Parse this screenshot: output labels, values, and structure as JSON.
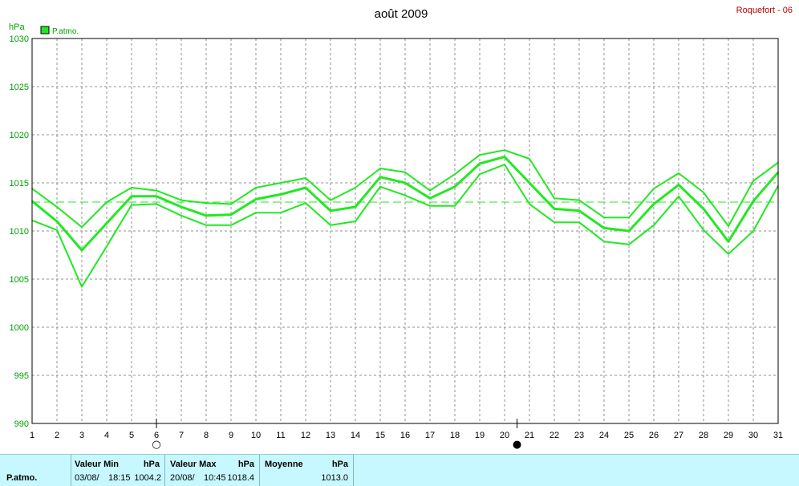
{
  "header": {
    "station": "Roquefort - 06"
  },
  "chart_data": {
    "type": "line",
    "title": "août 2009",
    "ylabel": "hPa",
    "ylim": [
      990,
      1030
    ],
    "yticks": [
      "990",
      "995",
      "1000",
      "1005",
      "1010",
      "1015",
      "1020",
      "1025",
      "1030"
    ],
    "categories": [
      "1",
      "2",
      "3",
      "4",
      "5",
      "6",
      "7",
      "8",
      "9",
      "10",
      "11",
      "12",
      "13",
      "14",
      "15",
      "16",
      "17",
      "18",
      "19",
      "20",
      "21",
      "22",
      "23",
      "24",
      "25",
      "26",
      "27",
      "28",
      "29",
      "30",
      "31"
    ],
    "legend": "P.atmo.",
    "line_color": "#22e822",
    "grid": true,
    "average_line": 1013.0,
    "series": [
      {
        "values": [
          1014.4,
          1012.5,
          1010.4,
          1013.0,
          1014.5,
          1014.2,
          1013.2,
          1012.9,
          1012.8,
          1014.5,
          1015.0,
          1015.5,
          1013.2,
          1014.5,
          1016.5,
          1016.1,
          1014.2,
          1015.9,
          1017.9,
          1018.4,
          1017.5,
          1013.4,
          1013.2,
          1011.4,
          1011.4,
          1014.4,
          1016.0,
          1014.0,
          1010.5,
          1015.2,
          1017.1
        ]
      },
      {
        "values": [
          1013.1,
          1011.0,
          1008.0,
          1010.8,
          1013.6,
          1013.6,
          1012.5,
          1011.6,
          1011.7,
          1013.3,
          1013.8,
          1014.5,
          1012.1,
          1012.5,
          1015.6,
          1015.0,
          1013.4,
          1014.6,
          1017.0,
          1017.7,
          1015.0,
          1012.3,
          1012.1,
          1010.3,
          1010.0,
          1012.8,
          1014.8,
          1012.3,
          1008.9,
          1013.1,
          1016.1
        ]
      },
      {
        "values": [
          1011.1,
          1010.1,
          1004.2,
          1008.4,
          1012.7,
          1012.8,
          1011.6,
          1010.6,
          1010.6,
          1011.9,
          1011.9,
          1012.9,
          1010.6,
          1011.0,
          1014.6,
          1013.7,
          1012.6,
          1012.6,
          1015.9,
          1016.9,
          1012.8,
          1010.9,
          1010.9,
          1008.9,
          1008.6,
          1010.6,
          1013.6,
          1010.1,
          1007.6,
          1010.0,
          1014.7
        ]
      }
    ],
    "moon_phases": [
      {
        "day": 6,
        "symbol": "○"
      },
      {
        "day": 20.5,
        "symbol": "●"
      }
    ]
  },
  "summary": {
    "row_label": "P.atmo.",
    "min_label": "Valeur Min",
    "min_unit": "hPa",
    "min_date": "03/08/",
    "min_time": "18:15",
    "min_value": "1004.2",
    "max_label": "Valeur Max",
    "max_unit": "hPa",
    "max_date": "20/08/",
    "max_time": "10:45",
    "max_value": "1018.4",
    "avg_label": "Moyenne",
    "avg_unit": "hPa",
    "avg_value": "1013.0"
  }
}
